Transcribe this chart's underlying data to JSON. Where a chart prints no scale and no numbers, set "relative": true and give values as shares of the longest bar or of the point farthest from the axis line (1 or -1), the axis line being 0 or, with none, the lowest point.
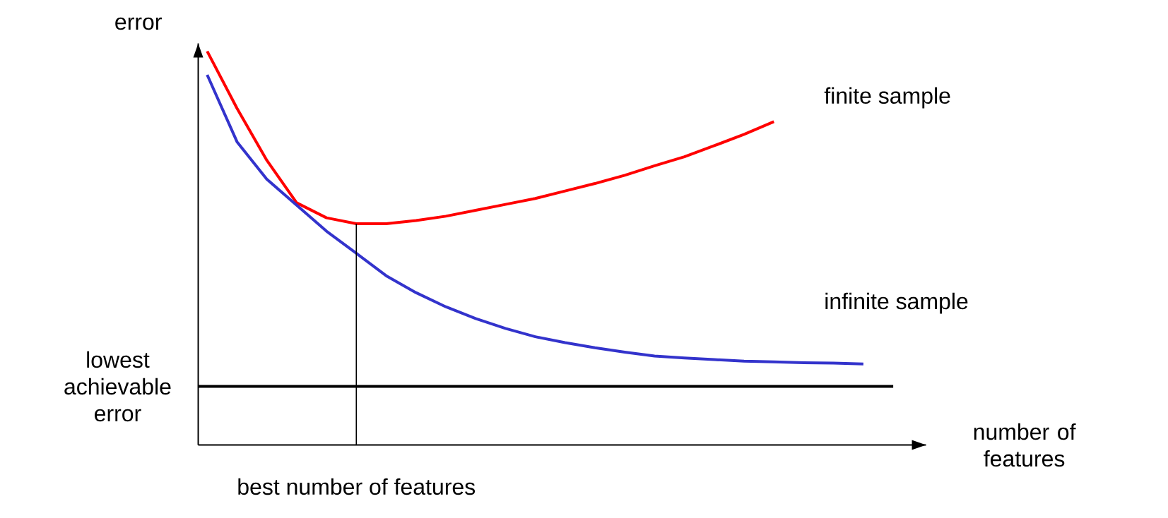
{
  "chart_data": {
    "type": "line",
    "relative": true,
    "xlabel": "number of features",
    "ylabel": "error",
    "marker": "none",
    "annotations": [
      "best number of features"
    ],
    "categories": [
      null,
      null,
      null,
      null,
      null,
      null,
      null,
      null,
      null,
      null,
      null,
      null,
      null,
      null,
      null,
      null,
      null,
      null,
      null,
      null,
      null,
      null,
      null
    ],
    "series": [
      {
        "name": "finite sample",
        "color": "#ff0000",
        "values": [
          1.0,
          0.855,
          0.723,
          0.615,
          0.577,
          0.562,
          0.562,
          0.57,
          0.581,
          0.596,
          0.611,
          0.626,
          0.645,
          0.664,
          0.685,
          0.709,
          0.732,
          0.76,
          0.789,
          0.821,
          null,
          null,
          null
        ]
      },
      {
        "name": "infinite sample",
        "color": "#3333cc",
        "values": [
          0.94,
          0.77,
          0.675,
          0.609,
          0.543,
          0.487,
          0.43,
          0.387,
          0.351,
          0.321,
          0.296,
          0.275,
          0.26,
          0.247,
          0.236,
          0.226,
          0.221,
          0.217,
          0.213,
          0.211,
          0.209,
          0.208,
          0.206
        ]
      }
    ],
    "ref_lines": [
      {
        "axis": "y",
        "value": 0.149,
        "label": "lowest achievable error",
        "color": "#000000"
      }
    ]
  }
}
